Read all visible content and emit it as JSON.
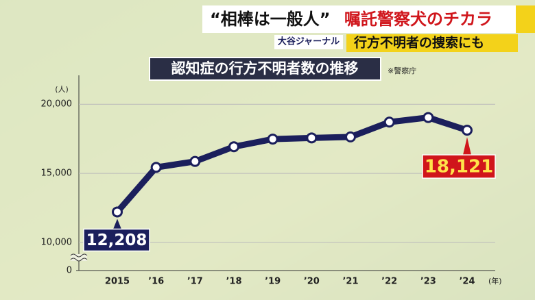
{
  "banner": {
    "headline_quote": "“相棒は一般人”",
    "headline": "嘱託警察犬のチカラ",
    "program": "大谷ジャーナル",
    "subheadline": "行方不明者の捜索にも"
  },
  "chart_data": {
    "type": "line",
    "title": "認知症の行方不明者数の推移",
    "source": "※警察庁",
    "y_unit": "(人)",
    "x_unit": "(年)",
    "categories": [
      "2015",
      "’16",
      "’17",
      "’18",
      "’19",
      "’20",
      "’21",
      "’22",
      "’23",
      "’24"
    ],
    "series": [
      {
        "name": "認知症の行方不明者数",
        "color": "#1b1f5c",
        "values": [
          12208,
          15432,
          15863,
          16927,
          17479,
          17565,
          17636,
          18709,
          19039,
          18121
        ],
        "value_labels": [
          "12,208",
          null,
          null,
          null,
          null,
          null,
          null,
          null,
          null,
          "18,121"
        ]
      }
    ],
    "ylim": [
      0,
      21100
    ],
    "yticks": [
      0,
      {
        "value": 10000,
        "label": "10,000"
      },
      {
        "value": 15000,
        "label": "15,000"
      },
      {
        "value": 20000,
        "label": "20,000"
      }
    ],
    "y_break": true,
    "grid": true
  }
}
